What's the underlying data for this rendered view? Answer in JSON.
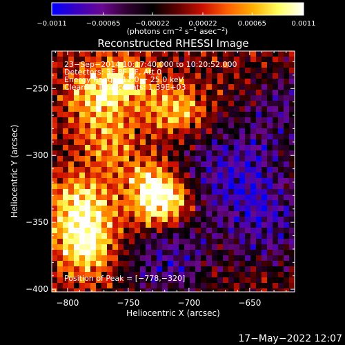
{
  "chart_data": {
    "type": "heatmap",
    "title": "Reconstructed RHESSI Image",
    "xlabel": "Heliocentric X (arcsec)",
    "ylabel": "Heliocentric Y (arcsec)",
    "xlim": [
      -813,
      -613
    ],
    "ylim": [
      -402,
      -222
    ],
    "x_ticks": [
      {
        "value": -800,
        "label": "−800"
      },
      {
        "value": -750,
        "label": "−750"
      },
      {
        "value": -700,
        "label": "−700"
      },
      {
        "value": -650,
        "label": "−650"
      }
    ],
    "y_ticks": [
      {
        "value": -250,
        "label": "−250"
      },
      {
        "value": -300,
        "label": "−300"
      },
      {
        "value": -350,
        "label": "−350"
      },
      {
        "value": -400,
        "label": "−400"
      }
    ],
    "colorbar": {
      "min": -0.0011,
      "max": 0.0011,
      "ticks": [
        {
          "value": -0.0011,
          "label": "−0.0011"
        },
        {
          "value": -0.00065,
          "label": "−0.00065"
        },
        {
          "value": -0.00022,
          "label": "−0.00022"
        },
        {
          "value": 0.00022,
          "label": "0.00022"
        },
        {
          "value": 0.00065,
          "label": "0.00065"
        },
        {
          "value": 0.0011,
          "label": "0.0011"
        }
      ],
      "units_prefix": "(photons cm",
      "units_exp1": "−2",
      "units_mid": " s",
      "units_exp2": "−1",
      "units_mid2": " asec",
      "units_exp3": "−2",
      "units_suffix": ")",
      "colors": [
        "#0000ff",
        "#3a00c0",
        "#6a0890",
        "#300030",
        "#000000",
        "#600000",
        "#cc1000",
        "#ff6000",
        "#ffb000",
        "#ffff60",
        "#ffffff"
      ]
    },
    "peak": {
      "x": -778,
      "y": -320
    },
    "annotations": {
      "line1": "23−Sep−2014 10:17:40.000 to 10:20:52.000",
      "line2": "Detectors: 3F 8F 9F, Att 0",
      "line3": "Energy Range: 12.0 − 25.0 keV",
      "line4": "Clean     Total counts: 1.39E+03",
      "peak_label": "Position of Peak = [−778,−320]"
    },
    "grid": false
  },
  "footer": {
    "timestamp": "17−May−2022 12:07"
  }
}
